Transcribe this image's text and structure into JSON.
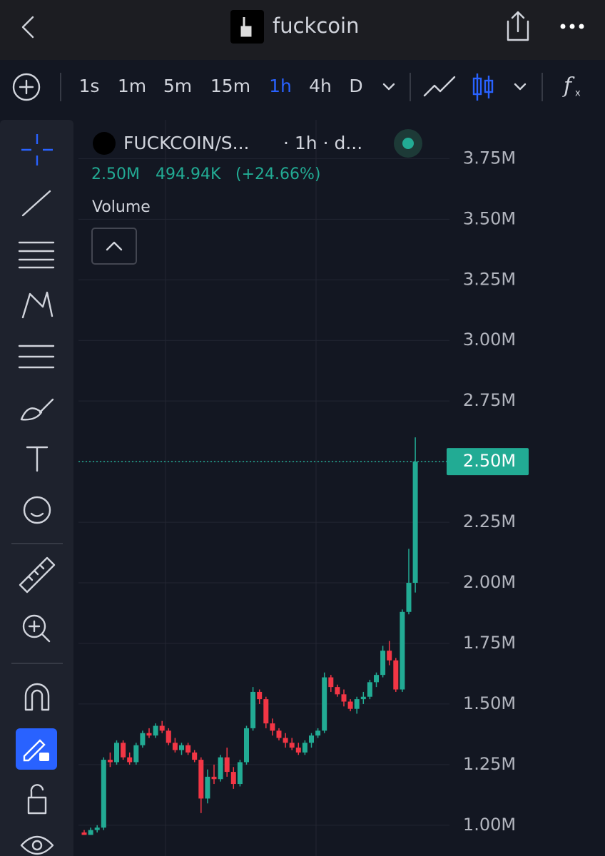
{
  "header": {
    "title": "fuckcoin"
  },
  "toolbar": {
    "intervals": [
      "1s",
      "1m",
      "5m",
      "15m",
      "1h",
      "4h",
      "D"
    ],
    "active_interval": "1h"
  },
  "legend": {
    "symbol": "FUCKCOIN/S...",
    "interval": "· 1h · d...",
    "price": "2.50M",
    "change": "494.94K",
    "change_percent": "(+24.66%)",
    "indicator": "Volume"
  },
  "chart_data": {
    "type": "candlestick",
    "up_color": "#22ab94",
    "down_color": "#f23645",
    "grid": true,
    "ylim": [
      870000,
      3910000
    ],
    "yticks": [
      {
        "value": 1000000,
        "label": "1.00M"
      },
      {
        "value": 1250000,
        "label": "1.25M"
      },
      {
        "value": 1500000,
        "label": "1.50M"
      },
      {
        "value": 1750000,
        "label": "1.75M"
      },
      {
        "value": 2000000,
        "label": "2.00M"
      },
      {
        "value": 2250000,
        "label": "2.25M"
      },
      {
        "value": 2500000,
        "label": "2.50M"
      },
      {
        "value": 2750000,
        "label": "2.75M"
      },
      {
        "value": 3000000,
        "label": "3.00M"
      },
      {
        "value": 3250000,
        "label": "3.25M"
      },
      {
        "value": 3500000,
        "label": "3.50M"
      },
      {
        "value": 3750000,
        "label": "3.75M"
      }
    ],
    "last_price_label": "2.50M",
    "open": [
      970000,
      960000,
      980000,
      990000,
      1270000,
      1260000,
      1340000,
      1280000,
      1260000,
      1330000,
      1380000,
      1370000,
      1410000,
      1390000,
      1340000,
      1310000,
      1330000,
      1300000,
      1270000,
      1110000,
      1200000,
      1190000,
      1280000,
      1220000,
      1170000,
      1260000,
      1400000,
      1550000,
      1520000,
      1420000,
      1390000,
      1360000,
      1340000,
      1320000,
      1300000,
      1340000,
      1370000,
      1390000,
      1610000,
      1570000,
      1540000,
      1510000,
      1480000,
      1520000,
      1530000,
      1590000,
      1620000,
      1720000,
      1680000,
      1560000,
      1880000,
      2000000
    ],
    "high": [
      980000,
      990000,
      1000000,
      1280000,
      1300000,
      1350000,
      1350000,
      1300000,
      1340000,
      1390000,
      1400000,
      1420000,
      1430000,
      1400000,
      1360000,
      1340000,
      1340000,
      1310000,
      1280000,
      1230000,
      1250000,
      1290000,
      1320000,
      1240000,
      1270000,
      1410000,
      1570000,
      1560000,
      1530000,
      1440000,
      1400000,
      1380000,
      1360000,
      1340000,
      1350000,
      1380000,
      1400000,
      1630000,
      1620000,
      1580000,
      1560000,
      1520000,
      1530000,
      1550000,
      1600000,
      1630000,
      1740000,
      1760000,
      1690000,
      1890000,
      2140000,
      2600000
    ],
    "low": [
      960000,
      960000,
      970000,
      980000,
      1240000,
      1250000,
      1270000,
      1250000,
      1250000,
      1320000,
      1360000,
      1360000,
      1380000,
      1330000,
      1300000,
      1290000,
      1290000,
      1260000,
      1050000,
      1090000,
      1170000,
      1180000,
      1200000,
      1150000,
      1160000,
      1250000,
      1390000,
      1500000,
      1400000,
      1370000,
      1350000,
      1320000,
      1310000,
      1290000,
      1290000,
      1320000,
      1360000,
      1380000,
      1550000,
      1530000,
      1490000,
      1470000,
      1460000,
      1500000,
      1520000,
      1570000,
      1610000,
      1660000,
      1550000,
      1550000,
      1870000,
      1960000
    ],
    "close": [
      960000,
      980000,
      990000,
      1270000,
      1260000,
      1340000,
      1280000,
      1260000,
      1330000,
      1380000,
      1370000,
      1410000,
      1390000,
      1340000,
      1310000,
      1330000,
      1300000,
      1270000,
      1110000,
      1200000,
      1190000,
      1280000,
      1220000,
      1170000,
      1260000,
      1400000,
      1550000,
      1520000,
      1420000,
      1390000,
      1360000,
      1340000,
      1320000,
      1300000,
      1340000,
      1370000,
      1390000,
      1610000,
      1570000,
      1540000,
      1510000,
      1480000,
      1520000,
      1530000,
      1590000,
      1620000,
      1720000,
      1680000,
      1560000,
      1880000,
      2000000,
      2500000
    ]
  }
}
